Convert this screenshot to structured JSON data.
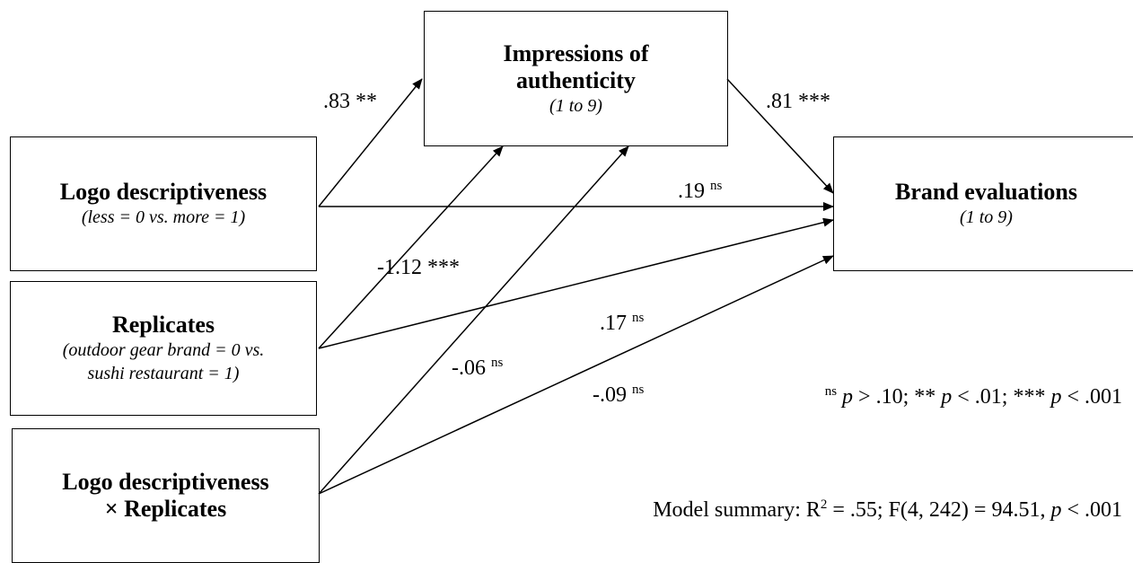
{
  "nodes": [
    {
      "title": [
        "Logo descriptiveness"
      ],
      "subtitle": [
        "(less = 0 vs. more = 1)"
      ]
    },
    {
      "title": [
        "Replicates"
      ],
      "subtitle": [
        "(outdoor gear brand = 0 vs.",
        "sushi restaurant = 1)"
      ]
    },
    {
      "title": [
        "Logo descriptiveness",
        "× Replicates"
      ],
      "subtitle": []
    },
    {
      "title": [
        "Impressions of",
        "authenticity"
      ],
      "subtitle": [
        "(1 to 9)"
      ]
    },
    {
      "title": [
        "Brand evaluations"
      ],
      "subtitle": [
        "(1 to 9)"
      ]
    }
  ],
  "edges": [
    {
      "coef": ".83",
      "sig": "**"
    },
    {
      "coef": ".81",
      "sig": "***"
    },
    {
      "coef": ".19",
      "sig": "ns"
    },
    {
      "coef": "-1.12",
      "sig": "***"
    },
    {
      "coef": ".17",
      "sig": "ns"
    },
    {
      "coef": "-.06",
      "sig": "ns"
    },
    {
      "coef": "-.09",
      "sig": "ns"
    }
  ],
  "footnote": [
    "ns",
    "p",
    "> .10; **",
    "p",
    "< .01; ***",
    "p",
    "< .001"
  ],
  "model_summary": [
    "Model summary: R",
    "2",
    "= .55; F(4, 242) = 94.51,",
    "p",
    "< .001"
  ]
}
